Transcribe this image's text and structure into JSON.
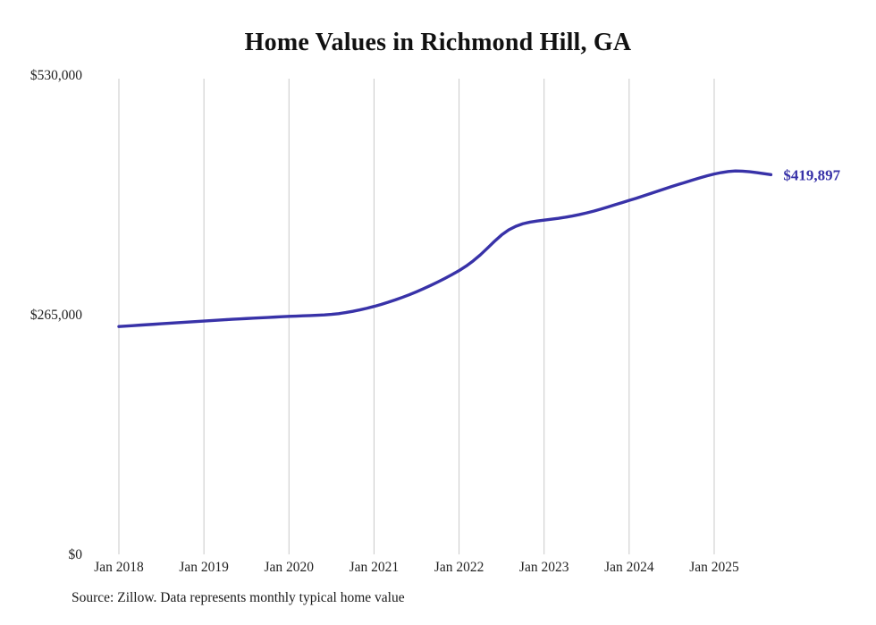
{
  "title": "Home Values in Richmond Hill, GA",
  "source_note": "Source: Zillow. Data represents monthly typical home value",
  "end_label": "$419,897",
  "colors": {
    "line": "#3832a8",
    "grid": "#c9c9c9",
    "title_text": "#111111",
    "tick_text": "#222222"
  },
  "chart_data": {
    "type": "line",
    "title": "Home Values in Richmond Hill, GA",
    "xlabel": "",
    "ylabel": "",
    "grid": "vertical",
    "legend": "none",
    "ylim": [
      0,
      530000
    ],
    "y_ticks": [
      0,
      265000,
      530000
    ],
    "y_tick_labels": [
      "$0",
      "$265,000",
      "$530,000"
    ],
    "x_tick_labels": [
      "Jan 2018",
      "Jan 2019",
      "Jan 2020",
      "Jan 2021",
      "Jan 2022",
      "Jan 2023",
      "Jan 2024",
      "Jan 2025"
    ],
    "x_start": "2018-01",
    "x_end": "2025-09",
    "final_value": 419897,
    "series": [
      {
        "name": "Typical home value",
        "values": [
          252000,
          252500,
          253000,
          253500,
          254000,
          254500,
          255000,
          255500,
          256000,
          256500,
          257000,
          257500,
          258000,
          258500,
          259000,
          259500,
          260000,
          260400,
          260800,
          261200,
          261600,
          262000,
          262400,
          262800,
          263200,
          263500,
          263800,
          264100,
          264400,
          264800,
          265400,
          266200,
          267400,
          268800,
          270400,
          272200,
          274200,
          276400,
          278800,
          281400,
          284200,
          287200,
          290400,
          293800,
          297400,
          301200,
          305200,
          309400,
          313800,
          318800,
          324600,
          331200,
          338600,
          346200,
          353200,
          358800,
          362800,
          365600,
          367400,
          368600,
          369600,
          370600,
          371600,
          372800,
          374200,
          375800,
          377600,
          379600,
          381800,
          384200,
          386600,
          389000,
          391400,
          393800,
          396400,
          399000,
          401600,
          404200,
          406800,
          409200,
          411600,
          414000,
          416400,
          418600,
          420600,
          422200,
          423400,
          424000,
          423800,
          423200,
          422200,
          421000,
          419897
        ]
      }
    ]
  }
}
